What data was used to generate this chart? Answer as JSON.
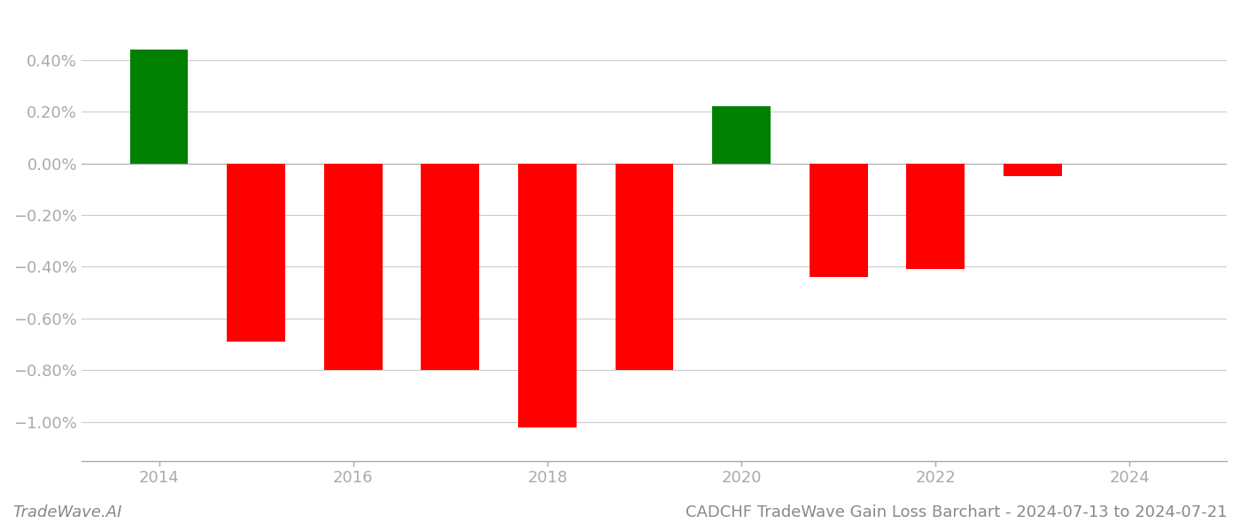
{
  "years": [
    2014,
    2015,
    2016,
    2017,
    2018,
    2019,
    2020,
    2021,
    2022,
    2023
  ],
  "values": [
    0.0044,
    -0.0069,
    -0.008,
    -0.008,
    -0.0102,
    -0.008,
    0.0022,
    -0.0044,
    -0.0041,
    -0.0005
  ],
  "colors": [
    "#008000",
    "#ff0000",
    "#ff0000",
    "#ff0000",
    "#ff0000",
    "#ff0000",
    "#008000",
    "#ff0000",
    "#ff0000",
    "#ff0000"
  ],
  "title": "CADCHF TradeWave Gain Loss Barchart - 2024-07-13 to 2024-07-21",
  "watermark": "TradeWave.AI",
  "ylim_min": -0.0115,
  "ylim_max": 0.0058,
  "background_color": "#ffffff",
  "grid_color": "#cccccc",
  "bar_width": 0.6,
  "title_fontsize": 13,
  "watermark_fontsize": 13,
  "tick_fontsize": 13,
  "xtick_color": "#aaaaaa",
  "ytick_color": "#aaaaaa",
  "spine_color": "#aaaaaa"
}
